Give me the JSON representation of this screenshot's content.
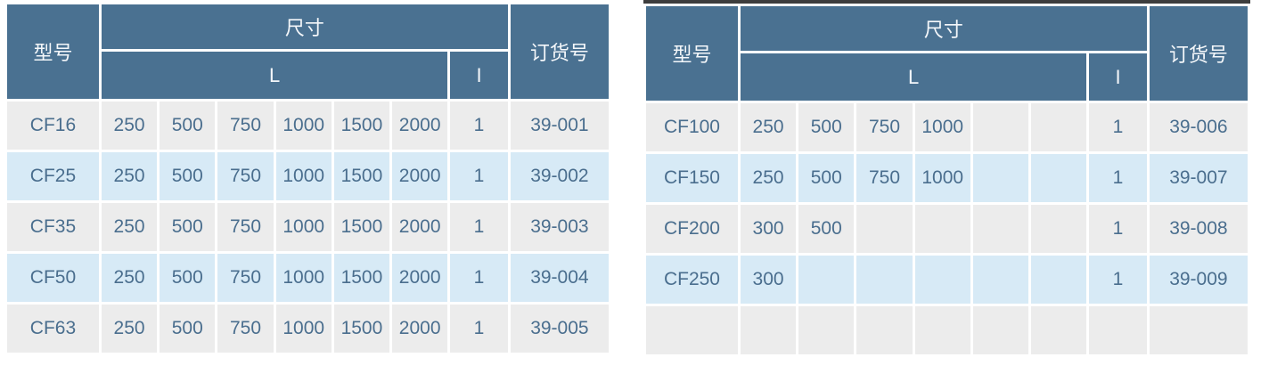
{
  "colors": {
    "header_bg": "#4a7191",
    "header_text": "#f4f7fa",
    "row_gray_bg": "#ececec",
    "row_blue_bg": "#d7eaf6",
    "cell_text": "#4a6e8e",
    "accent_bar": "#3d3d3d",
    "page_bg": "#ffffff"
  },
  "tables": [
    {
      "name": "cf-models-small",
      "has_top_bar": false,
      "headers": {
        "model": "型号",
        "dimensions": "尺寸",
        "length": "L",
        "i": "I",
        "order": "订货号"
      },
      "rows": [
        {
          "model": "CF16",
          "l": [
            "250",
            "500",
            "750",
            "1000",
            "1500",
            "2000"
          ],
          "i": "1",
          "order": "39-001"
        },
        {
          "model": "CF25",
          "l": [
            "250",
            "500",
            "750",
            "1000",
            "1500",
            "2000"
          ],
          "i": "1",
          "order": "39-002"
        },
        {
          "model": "CF35",
          "l": [
            "250",
            "500",
            "750",
            "1000",
            "1500",
            "2000"
          ],
          "i": "1",
          "order": "39-003"
        },
        {
          "model": "CF50",
          "l": [
            "250",
            "500",
            "750",
            "1000",
            "1500",
            "2000"
          ],
          "i": "1",
          "order": "39-004"
        },
        {
          "model": "CF63",
          "l": [
            "250",
            "500",
            "750",
            "1000",
            "1500",
            "2000"
          ],
          "i": "1",
          "order": "39-005"
        }
      ]
    },
    {
      "name": "cf-models-large",
      "has_top_bar": true,
      "headers": {
        "model": "型号",
        "dimensions": "尺寸",
        "length": "L",
        "i": "I",
        "order": "订货号"
      },
      "rows": [
        {
          "model": "CF100",
          "l": [
            "250",
            "500",
            "750",
            "1000",
            "",
            ""
          ],
          "i": "1",
          "order": "39-006"
        },
        {
          "model": "CF150",
          "l": [
            "250",
            "500",
            "750",
            "1000",
            "",
            ""
          ],
          "i": "1",
          "order": "39-007"
        },
        {
          "model": "CF200",
          "l": [
            "300",
            "500",
            "",
            "",
            "",
            ""
          ],
          "i": "1",
          "order": "39-008"
        },
        {
          "model": "CF250",
          "l": [
            "300",
            "",
            "",
            "",
            "",
            ""
          ],
          "i": "1",
          "order": "39-009"
        },
        {
          "model": "",
          "l": [
            "",
            "",
            "",
            "",
            "",
            ""
          ],
          "i": "",
          "order": ""
        }
      ]
    }
  ]
}
